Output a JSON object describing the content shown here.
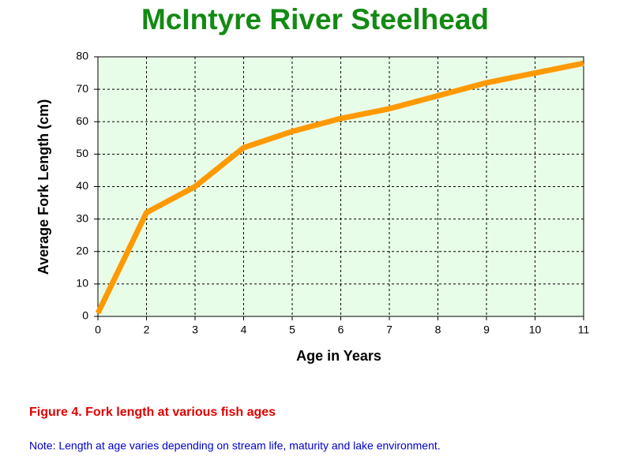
{
  "chart_data": {
    "type": "line",
    "title": "McIntyre River Steelhead",
    "x_label": "Age in Years",
    "y_label": "Average Fork Length (cm)",
    "categories": [
      "0",
      "2",
      "3",
      "4",
      "5",
      "6",
      "7",
      "8",
      "9",
      "10",
      "11"
    ],
    "series": [
      {
        "name": "Fork length",
        "color": "#ff9900",
        "values": [
          1,
          32,
          40,
          52,
          57,
          61,
          64,
          68,
          72,
          75,
          78
        ]
      }
    ],
    "ylim": [
      0,
      80
    ],
    "yticks": [
      0,
      10,
      20,
      30,
      40,
      50,
      60,
      70,
      80
    ],
    "grid": true,
    "caption": "Figure 4.  Fork length at various fish ages",
    "note": "Note: Length at age varies depending on stream life, maturity and lake environment."
  }
}
